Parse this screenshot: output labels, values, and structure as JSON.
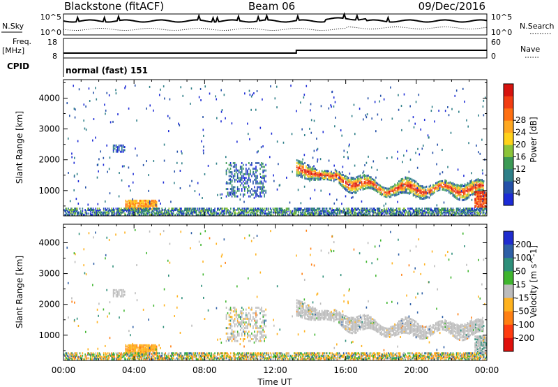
{
  "header": {
    "title": "Blackstone (fitACF)",
    "beam": "Beam 06",
    "date": "09/Dec/2016"
  },
  "top_panels": {
    "nsky_label": "N.Sky",
    "nsky_ticks": [
      "10^5",
      "10^0"
    ],
    "nsearch_label": "N.Search",
    "nsearch_ticks": [
      "10^5",
      "10^0"
    ],
    "freq_label_1": "Freq.",
    "freq_label_2": "[MHz]",
    "freq_ticks": [
      "18",
      "8"
    ],
    "nave_label": "Nave",
    "nave_ticks": [
      "60",
      "0"
    ],
    "cpid_label": "CPID",
    "cpid_value": "normal (fast) 151"
  },
  "chart_data": [
    {
      "type": "heatmap",
      "title": "",
      "xlabel": "Time UT",
      "ylabel": "Slant Range [km]",
      "x_ticks": [
        "00:00",
        "04:00",
        "08:00",
        "12:00",
        "16:00",
        "20:00",
        "00:00"
      ],
      "y_ticks": [
        "1000",
        "2000",
        "3000",
        "4000"
      ],
      "ylim": [
        180,
        4600
      ],
      "xlim_hours": [
        0,
        24
      ],
      "colorbar": {
        "label": "Power [dB]",
        "ticks": [
          "4",
          "8",
          "12",
          "16",
          "20",
          "24",
          "28"
        ],
        "colors": [
          "#1c2bd6",
          "#2450a8",
          "#2e7f88",
          "#3c9a55",
          "#8cc43a",
          "#ffd21a",
          "#ffa820",
          "#ff7012",
          "#f23d12",
          "#d6130e"
        ]
      },
      "features": [
        {
          "hours": [
            13.5,
            23.8
          ],
          "range_km": [
            1000,
            1700
          ],
          "value_db": 24,
          "shape": "wavy arc band"
        },
        {
          "hours": [
            3.5,
            5.3
          ],
          "range_km": [
            400,
            650
          ],
          "value_db": 20
        },
        {
          "hours": [
            9.2,
            11.5
          ],
          "range_km": [
            1100,
            1900
          ],
          "value_db": 8
        },
        {
          "hours": [
            2.8,
            3.5
          ],
          "range_km": [
            2250,
            2500
          ],
          "value_db": 6
        },
        {
          "hours": [
            23.4,
            24
          ],
          "range_km": [
            450,
            950
          ],
          "value_db": 28
        }
      ]
    },
    {
      "type": "heatmap",
      "title": "",
      "xlabel": "Time UT",
      "ylabel": "Slant Range [km]",
      "x_ticks": [
        "00:00",
        "04:00",
        "08:00",
        "12:00",
        "16:00",
        "20:00",
        "00:00"
      ],
      "y_ticks": [
        "1000",
        "2000",
        "3000",
        "4000"
      ],
      "ylim": [
        180,
        4600
      ],
      "xlim_hours": [
        0,
        24
      ],
      "colorbar": {
        "label": "Velocity [m s^-1]",
        "ticks": [
          "200",
          "100",
          "50",
          "15",
          "-15",
          "-50",
          "-100",
          "-200"
        ],
        "colors": [
          "#1f2ccf",
          "#2e5fa6",
          "#2e8f7a",
          "#3fb52e",
          "#bcbcbc",
          "#ffb21e",
          "#ff7f12",
          "#ff3c10",
          "#e0100c"
        ]
      },
      "features": [
        {
          "hours": [
            13.2,
            23.8
          ],
          "range_km": [
            1000,
            2000
          ],
          "value_ms": 0,
          "shape": "wavy arc band (ground scatter)"
        },
        {
          "hours": [
            3.5,
            5.3
          ],
          "range_km": [
            400,
            650
          ],
          "value_ms": -50
        },
        {
          "hours": [
            9.3,
            11.5
          ],
          "range_km": [
            800,
            1900
          ],
          "value_ms": -15
        },
        {
          "hours": [
            23.3,
            24
          ],
          "range_km": [
            450,
            950
          ],
          "value_ms": 0
        }
      ]
    }
  ]
}
